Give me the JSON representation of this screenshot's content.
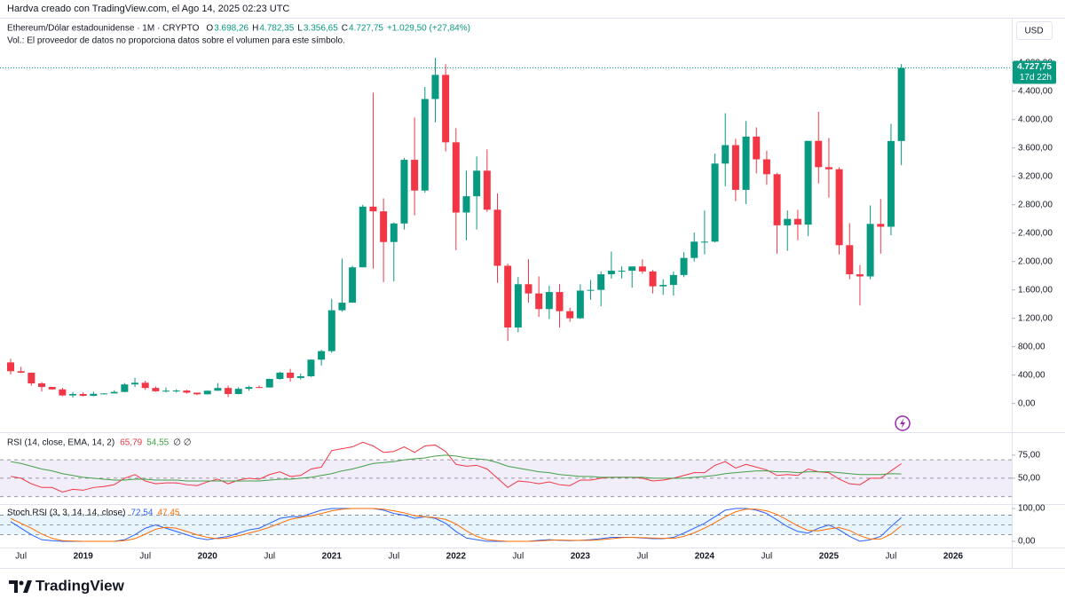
{
  "header": {
    "caption": "Hardva creado con TradingView.com, el Ago 14, 2025 02:23 UTC",
    "currency": "USD",
    "brand": "TradingView"
  },
  "chart_data": [
    {
      "type": "candlestick",
      "title": "Ethereum/Dólar estadounidense · 1M · CRYPTO",
      "note": "Vol.: El proveedor de datos no proporciona datos sobre el volumen para este símbolo.",
      "ohlc_legend": [
        {
          "label": "O",
          "value": "3.698,26"
        },
        {
          "label": "H",
          "value": "4.782,35"
        },
        {
          "label": "L",
          "value": "3.356,65"
        },
        {
          "label": "C",
          "value": "4.727,75"
        }
      ],
      "change_label": "+1.029,50 (+27,84%)",
      "last_price_label": "4.727,75",
      "countdown": "17d 22h",
      "up_color": "#089981",
      "down_color": "#f23645",
      "categories": [
        null,
        "Jul",
        null,
        null,
        null,
        null,
        null,
        "2019",
        null,
        null,
        null,
        null,
        null,
        "Jul",
        null,
        null,
        null,
        null,
        null,
        "2020",
        null,
        null,
        null,
        null,
        null,
        "Jul",
        null,
        null,
        null,
        null,
        null,
        "2021",
        null,
        null,
        null,
        null,
        null,
        "Jul",
        null,
        null,
        null,
        null,
        null,
        "2022",
        null,
        null,
        null,
        null,
        null,
        "Jul",
        null,
        null,
        null,
        null,
        null,
        "2023",
        null,
        null,
        null,
        null,
        null,
        "Jul",
        null,
        null,
        null,
        null,
        null,
        "2024",
        null,
        null,
        null,
        null,
        null,
        "Jul",
        null,
        null,
        null,
        null,
        null,
        "2025",
        null,
        null,
        null,
        null,
        null,
        "Jul",
        null,
        null,
        null,
        null,
        null,
        "2026"
      ],
      "open": [
        578,
        454,
        433,
        283,
        232,
        198,
        113,
        133,
        107,
        136,
        141,
        162,
        268,
        291,
        218,
        172,
        180,
        182,
        152,
        129,
        179,
        218,
        133,
        206,
        231,
        225,
        345,
        434,
        359,
        383,
        617,
        737,
        1313,
        1420,
        1918,
        2773,
        2707,
        2275,
        2536,
        3433,
        3000,
        4290,
        4630,
        3680,
        2690,
        2920,
        3280,
        2730,
        1940,
        1070,
        1680,
        1550,
        1330,
        1570,
        1300,
        1200,
        1590,
        1600,
        1820,
        1870,
        1870,
        1930,
        1860,
        1650,
        1670,
        1810,
        2050,
        2280,
        2280,
        3380,
        3640,
        3010,
        3760,
        3440,
        3230,
        2510,
        2600,
        2520,
        3700,
        3330,
        3300,
        2230,
        1820,
        1790,
        2530,
        2490,
        3698.26,
        null,
        null,
        null,
        null,
        null
      ],
      "high": [
        628,
        516,
        435,
        300,
        233,
        220,
        162,
        160,
        165,
        144,
        185,
        288,
        362,
        320,
        239,
        224,
        199,
        192,
        153,
        185,
        288,
        253,
        228,
        248,
        252,
        350,
        445,
        488,
        420,
        622,
        757,
        1475,
        2040,
        1940,
        2800,
        4380,
        2890,
        2550,
        3460,
        4030,
        4460,
        4870,
        4780,
        3880,
        3280,
        3480,
        3580,
        2960,
        1970,
        1780,
        2030,
        1790,
        1660,
        1680,
        1350,
        1680,
        1740,
        1860,
        2140,
        1930,
        1930,
        2030,
        1880,
        1750,
        1860,
        2130,
        2410,
        2720,
        3520,
        4090,
        3730,
        3980,
        3890,
        3560,
        3250,
        2720,
        2730,
        3690,
        4110,
        3740,
        3330,
        2540,
        1950,
        2790,
        2880,
        3940,
        4782.35,
        null,
        null,
        null,
        null,
        null
      ],
      "low": [
        410,
        427,
        250,
        168,
        194,
        101,
        82,
        99,
        101,
        127,
        141,
        158,
        231,
        190,
        164,
        155,
        152,
        138,
        117,
        126,
        178,
        90,
        128,
        177,
        216,
        224,
        335,
        308,
        337,
        373,
        532,
        714,
        1293,
        1420,
        1920,
        1900,
        1710,
        1720,
        2450,
        2650,
        2970,
        3960,
        3550,
        2160,
        2300,
        2450,
        2700,
        1700,
        880,
        1000,
        1420,
        1220,
        1190,
        1070,
        1150,
        1190,
        1460,
        1370,
        1760,
        1760,
        1630,
        1830,
        1550,
        1530,
        1520,
        1780,
        2000,
        2100,
        2270,
        3060,
        2850,
        2810,
        3240,
        3080,
        2110,
        2150,
        2300,
        2360,
        3100,
        2900,
        2100,
        1750,
        1380,
        1750,
        2110,
        2370,
        3356.65,
        null,
        null,
        null,
        null,
        null
      ],
      "close": [
        454,
        433,
        283,
        232,
        198,
        113,
        133,
        107,
        136,
        141,
        162,
        268,
        291,
        218,
        172,
        180,
        182,
        152,
        129,
        179,
        218,
        133,
        206,
        231,
        225,
        345,
        434,
        359,
        383,
        617,
        737,
        1313,
        1420,
        1918,
        2773,
        2707,
        2275,
        2536,
        3433,
        3000,
        4290,
        4630,
        3680,
        2690,
        2920,
        3280,
        2730,
        1940,
        1070,
        1680,
        1550,
        1330,
        1570,
        1300,
        1200,
        1590,
        1600,
        1820,
        1870,
        1870,
        1930,
        1860,
        1650,
        1670,
        1810,
        2050,
        2280,
        2280,
        3380,
        3640,
        3010,
        3760,
        3440,
        3230,
        2510,
        2600,
        2520,
        3700,
        3330,
        3300,
        2230,
        1820,
        1790,
        2530,
        2490,
        3698.25,
        4727.75,
        null,
        null,
        null,
        null,
        null
      ],
      "ylim": [
        -380,
        5410
      ],
      "yticks": [
        {
          "value": 0,
          "label": "0,00"
        },
        {
          "value": 400,
          "label": "400,00"
        },
        {
          "value": 800,
          "label": "800,00"
        },
        {
          "value": 1200,
          "label": "1.200,00"
        },
        {
          "value": 1600,
          "label": "1.600,00"
        },
        {
          "value": 2000,
          "label": "2.000,00"
        },
        {
          "value": 2400,
          "label": "2.400,00"
        },
        {
          "value": 2800,
          "label": "2.800,00"
        },
        {
          "value": 3200,
          "label": "3.200,00"
        },
        {
          "value": 3600,
          "label": "3.600,00"
        },
        {
          "value": 4000,
          "label": "4.000,00"
        },
        {
          "value": 4400,
          "label": "4.400,00"
        },
        {
          "value": 4800,
          "label": "4.800,00"
        }
      ]
    },
    {
      "type": "line",
      "title": "RSI (14, close, EMA, 14, 2)",
      "extra": "∅ ∅",
      "band": [
        30,
        70
      ],
      "levels": [
        70,
        50,
        30
      ],
      "band_color": "#7e57c2",
      "ylim": [
        23,
        97
      ],
      "yticks": [
        {
          "value": 75,
          "label": "75,00"
        },
        {
          "value": 50,
          "label": "50,00"
        }
      ],
      "series": [
        {
          "color": "#f23645",
          "last_label": "65,79",
          "values": [
            52,
            50,
            44,
            40,
            40,
            35,
            38,
            37,
            40,
            41,
            43,
            50,
            54,
            47,
            44,
            45,
            45,
            43,
            42,
            46,
            49,
            44,
            48,
            50,
            49,
            54,
            57,
            52,
            53,
            60,
            62,
            80,
            82,
            84,
            89,
            85,
            78,
            79,
            84,
            78,
            85,
            86,
            79,
            65,
            63,
            64,
            60,
            50,
            40,
            47,
            46,
            44,
            46,
            43,
            42,
            48,
            48,
            50,
            51,
            51,
            51,
            50,
            47,
            48,
            50,
            53,
            56,
            56,
            64,
            68,
            61,
            65,
            62,
            59,
            53,
            54,
            53,
            60,
            57,
            56,
            49,
            44,
            43,
            50,
            50,
            58,
            65.79,
            null,
            null,
            null,
            null,
            null
          ]
        },
        {
          "color": "#43a047",
          "last_label": "54,55",
          "values": [
            68,
            66,
            63,
            60,
            58,
            55,
            53,
            51,
            50,
            49,
            48,
            48,
            49,
            49,
            48,
            48,
            48,
            47,
            47,
            47,
            47,
            47,
            47,
            47,
            47,
            48,
            49,
            49,
            50,
            51,
            53,
            55,
            58,
            60,
            63,
            66,
            67,
            68,
            70,
            71,
            72,
            74,
            75,
            74,
            72,
            71,
            70,
            67,
            63,
            61,
            59,
            57,
            56,
            54,
            53,
            52,
            52,
            51,
            51,
            51,
            51,
            51,
            50,
            50,
            50,
            50,
            51,
            52,
            53,
            55,
            56,
            57,
            58,
            58,
            57,
            57,
            56,
            57,
            57,
            57,
            56,
            55,
            54,
            54,
            54,
            55,
            54.55,
            null,
            null,
            null,
            null,
            null
          ]
        }
      ]
    },
    {
      "type": "line",
      "title": "Stoch RSI (3, 3, 14, 14, close)",
      "band": [
        20,
        80
      ],
      "levels": [
        80,
        50,
        20
      ],
      "band_color": "#2196f3",
      "ylim": [
        -19,
        111
      ],
      "yticks": [
        {
          "value": 100,
          "label": "100,00"
        },
        {
          "value": 0,
          "label": "0,00"
        }
      ],
      "series": [
        {
          "color": "#2962ff",
          "last_label": "72,54",
          "values": [
            60,
            40,
            20,
            5,
            2,
            0,
            0,
            0,
            0,
            0,
            0,
            5,
            20,
            40,
            50,
            40,
            30,
            20,
            10,
            5,
            10,
            15,
            25,
            35,
            40,
            55,
            70,
            75,
            75,
            85,
            95,
            100,
            100,
            100,
            100,
            100,
            95,
            85,
            80,
            70,
            75,
            70,
            55,
            30,
            10,
            5,
            0,
            0,
            0,
            0,
            0,
            3,
            5,
            3,
            2,
            3,
            5,
            8,
            12,
            12,
            12,
            10,
            8,
            8,
            12,
            25,
            40,
            55,
            75,
            95,
            100,
            100,
            95,
            85,
            65,
            45,
            30,
            25,
            40,
            50,
            35,
            15,
            0,
            5,
            15,
            45,
            72.54,
            null,
            null,
            null,
            null,
            null
          ]
        },
        {
          "color": "#ff6d00",
          "last_label": "47,45",
          "values": [
            70,
            55,
            40,
            22,
            9,
            2,
            1,
            0,
            0,
            0,
            0,
            2,
            8,
            22,
            37,
            43,
            40,
            30,
            20,
            12,
            8,
            10,
            17,
            25,
            33,
            43,
            55,
            67,
            73,
            78,
            85,
            93,
            98,
            100,
            100,
            100,
            98,
            93,
            87,
            78,
            75,
            72,
            67,
            53,
            32,
            15,
            5,
            2,
            0,
            0,
            0,
            1,
            3,
            4,
            3,
            3,
            3,
            5,
            8,
            11,
            12,
            11,
            10,
            9,
            9,
            15,
            26,
            40,
            57,
            75,
            90,
            98,
            98,
            93,
            82,
            65,
            47,
            33,
            32,
            38,
            42,
            33,
            17,
            7,
            7,
            22,
            47.45,
            null,
            null,
            null,
            null,
            null
          ]
        }
      ]
    }
  ]
}
